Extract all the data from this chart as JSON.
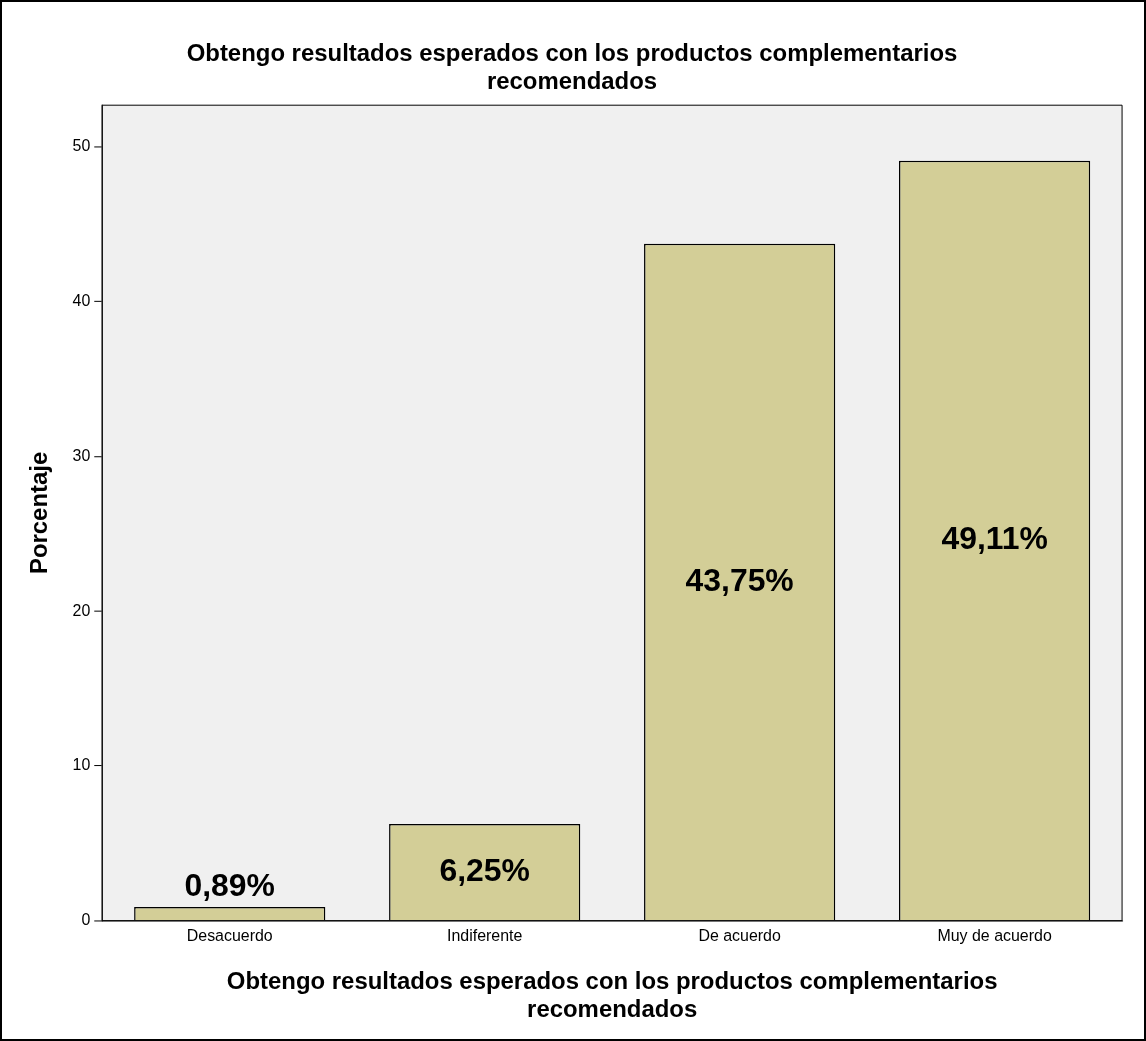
{
  "chart_data": {
    "type": "bar",
    "title": "Obtengo resultados esperados con los productos complementarios recomendados",
    "xlabel": "Obtengo resultados esperados con los productos complementarios recomendados",
    "ylabel": "Porcentaje",
    "categories": [
      "Desacuerdo",
      "Indiferente",
      "De acuerdo",
      "Muy de acuerdo"
    ],
    "values": [
      0.89,
      6.25,
      43.75,
      49.11
    ],
    "color": "#d3ce97",
    "value_labels": [
      "0,89%",
      "6,25%",
      "43,75%",
      "49,11%"
    ],
    "ylim": [
      0,
      52.7
    ],
    "yticks": [
      0,
      10,
      20,
      30,
      40,
      50
    ],
    "grid": false,
    "legend": false
  }
}
